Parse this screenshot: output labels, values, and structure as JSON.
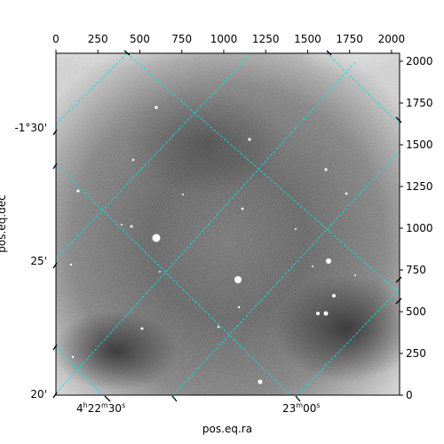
{
  "chart_data": {
    "type": "image",
    "image": "grayscale astronomical sky image with WCS grid overlay",
    "pixel_axes": {
      "x_range": [
        0,
        2048
      ],
      "y_range": [
        0,
        2048
      ],
      "x_ticks": [
        0,
        250,
        500,
        750,
        1000,
        1250,
        1500,
        1750,
        2000
      ],
      "y_ticks": [
        0,
        250,
        500,
        750,
        1000,
        1250,
        1500,
        1750,
        2000
      ],
      "x_tick_labels": [
        "0",
        "250",
        "500",
        "750",
        "1000",
        "1250",
        "1500",
        "1750",
        "2000"
      ],
      "y_tick_labels": [
        "0",
        "250",
        "500",
        "750",
        "1000",
        "1250",
        "1500",
        "1750",
        "2000"
      ]
    },
    "world_axes": {
      "ra_label": "pos.eq.ra",
      "dec_label": "pos.eq.dec",
      "ra_ticks": [
        {
          "h": "4",
          "m": "22",
          "s": "30"
        },
        {
          "h": "",
          "m": "23",
          "s": "00"
        }
      ],
      "dec_ticks": [
        "-1°30'",
        "25'",
        "20'"
      ]
    },
    "grid": true,
    "grid_color": "#00e5e5",
    "colormap": "gray"
  }
}
